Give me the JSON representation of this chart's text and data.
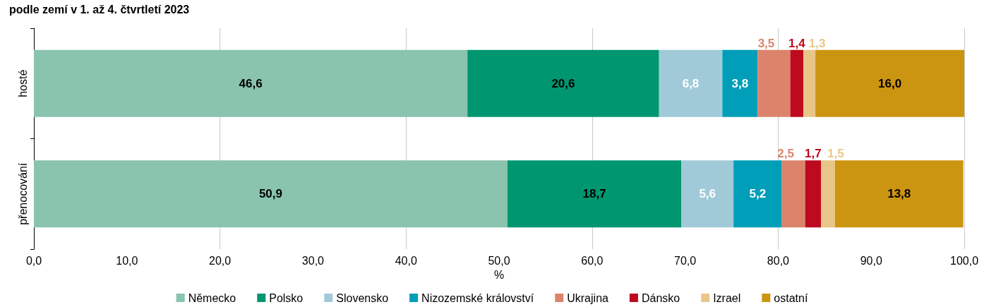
{
  "chart_data": {
    "type": "bar",
    "orientation": "horizontal",
    "stacked": true,
    "title": "podle zemí v 1. až 4. čtvrtletí 2023",
    "xlabel": "%",
    "categories": [
      "hosté",
      "přenocování"
    ],
    "series": [
      {
        "name": "Německo",
        "color": "#8ac3ae",
        "values": [
          46.6,
          50.9
        ],
        "value_labels": [
          "46,6",
          "50,9"
        ]
      },
      {
        "name": "Polsko",
        "color": "#009670",
        "values": [
          20.6,
          18.7
        ],
        "value_labels": [
          "20,6",
          "18,7"
        ]
      },
      {
        "name": "Slovensko",
        "color": "#a1cad8",
        "values": [
          6.8,
          5.6
        ],
        "value_labels": [
          "6,8",
          "5,6"
        ]
      },
      {
        "name": "Nizozemské království",
        "color": "#009eb8",
        "values": [
          3.8,
          5.2
        ],
        "value_labels": [
          "3,8",
          "5,2"
        ]
      },
      {
        "name": "Ukrajina",
        "color": "#dc846b",
        "values": [
          3.5,
          2.5
        ],
        "value_labels": [
          "3,5",
          "2,5"
        ]
      },
      {
        "name": "Dánsko",
        "color": "#be0a1e",
        "values": [
          1.4,
          1.7
        ],
        "value_labels": [
          "1,4",
          "1,7"
        ]
      },
      {
        "name": "Izrael",
        "color": "#e8c687",
        "values": [
          1.3,
          1.5
        ],
        "value_labels": [
          "1,3",
          "1,5"
        ]
      },
      {
        "name": "ostatní",
        "color": "#cc9511",
        "values": [
          16.0,
          13.8
        ],
        "value_labels": [
          "16,0",
          "13,8"
        ]
      }
    ],
    "xlim": [
      0,
      100
    ],
    "xticks": [
      {
        "value": 0,
        "label": "0,0"
      },
      {
        "value": 10,
        "label": "10,0"
      },
      {
        "value": 20,
        "label": "20,0"
      },
      {
        "value": 30,
        "label": "30,0"
      },
      {
        "value": 40,
        "label": "40,0"
      },
      {
        "value": 50,
        "label": "50,0"
      },
      {
        "value": 60,
        "label": "60,0"
      },
      {
        "value": 70,
        "label": "70,0"
      },
      {
        "value": 80,
        "label": "80,0"
      },
      {
        "value": 90,
        "label": "90,0"
      },
      {
        "value": 100,
        "label": "100,0"
      }
    ],
    "grid": "x",
    "legend": "bottom"
  }
}
